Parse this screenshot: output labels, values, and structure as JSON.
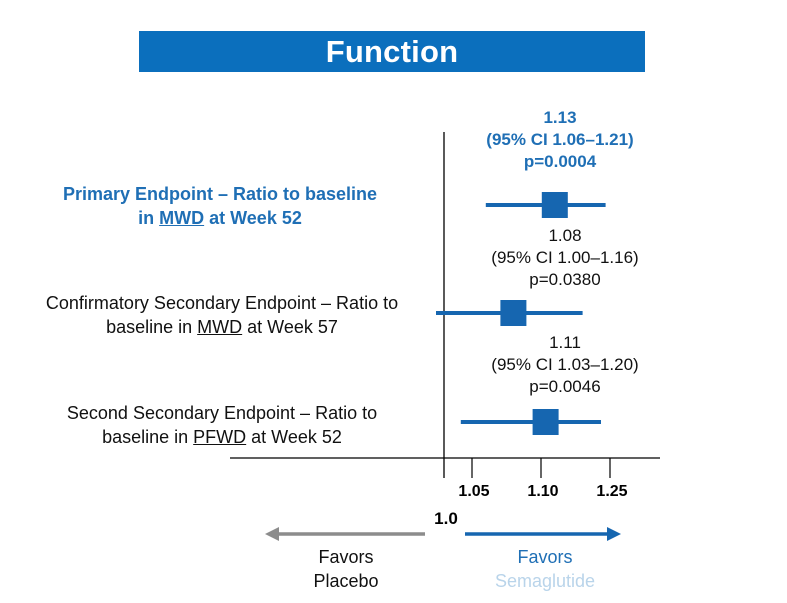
{
  "title": "Function",
  "chart_data": {
    "type": "forest",
    "reference_value": 1.0,
    "reference_label": "1.0",
    "x_ticks": [
      1.05,
      1.1,
      1.25
    ],
    "x_tick_labels": [
      "1.05",
      "1.10",
      "1.25"
    ],
    "rows": [
      {
        "label_lines": [
          "Primary Endpoint – Ratio to baseline",
          "in ",
          "MWD",
          " at Week 52"
        ],
        "estimate": 1.13,
        "ci_low": 1.06,
        "ci_high": 1.21,
        "value_text": "1.13",
        "ci_text": "(95% CI 1.06–1.21)",
        "p_text": "p=0.0004",
        "highlight": true
      },
      {
        "label_lines": [
          "Confirmatory Secondary Endpoint – Ratio to",
          "baseline in ",
          "MWD",
          " at Week 57"
        ],
        "estimate": 1.08,
        "ci_low": 1.0,
        "ci_high": 1.16,
        "value_text": "1.08",
        "ci_text": "(95% CI 1.00–1.16)",
        "p_text": "p=0.0380",
        "highlight": false
      },
      {
        "label_lines": [
          "Second Secondary Endpoint – Ratio to",
          "baseline in ",
          "PFWD",
          " at Week 52"
        ],
        "estimate": 1.11,
        "ci_low": 1.03,
        "ci_high": 1.2,
        "value_text": "1.11",
        "ci_text": "(95% CI 1.03–1.20)",
        "p_text": "p=0.0046",
        "highlight": false
      }
    ]
  },
  "favors": {
    "left": [
      "Favors",
      "Placebo"
    ],
    "right": [
      "Favors",
      "Semaglutide"
    ]
  },
  "colors": {
    "brand_blue": "#0b6fbd",
    "marker_blue": "#1666b0",
    "arrow_gray": "#8c8c8c",
    "axis": "#000000"
  }
}
